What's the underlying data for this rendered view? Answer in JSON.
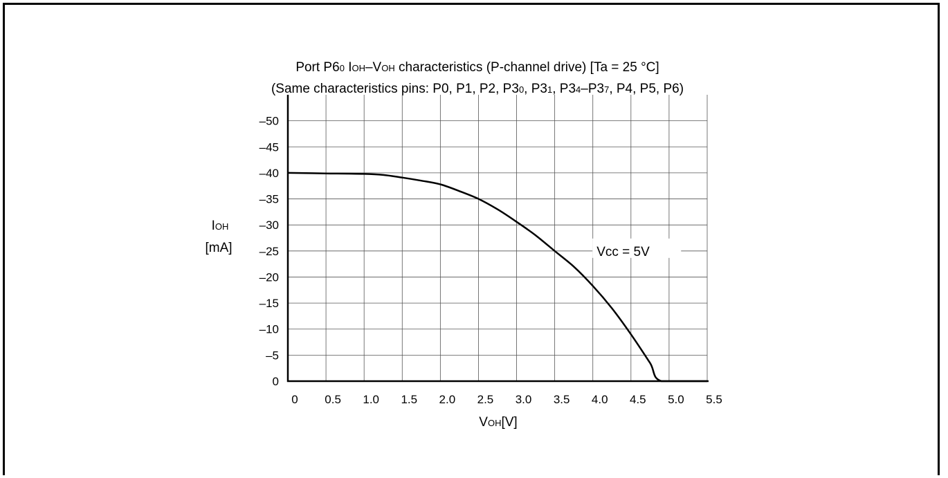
{
  "chart_data": {
    "type": "line",
    "title": "Port P6₀ IOH–VOH characteristics (P-channel drive) [Ta = 25 °C]",
    "subtitle": "(Same characteristics pins: P0, P1, P2, P3₀, P3₁, P3₄–P3₇, P4, P5, P6)",
    "title_parts": [
      {
        "t": "Port P6",
        "sub": false
      },
      {
        "t": "0",
        "sub": true
      },
      {
        "t": " I",
        "sub": false
      },
      {
        "t": "OH",
        "sub": true
      },
      {
        "t": "–V",
        "sub": false
      },
      {
        "t": "OH",
        "sub": true
      },
      {
        "t": " characteristics (P-channel drive) [Ta = 25 °C]",
        "sub": false
      }
    ],
    "subtitle_parts": [
      {
        "t": "(Same characteristics pins: P0, P1, P2, P3",
        "sub": false
      },
      {
        "t": "0",
        "sub": true
      },
      {
        "t": ", P3",
        "sub": false
      },
      {
        "t": "1",
        "sub": true
      },
      {
        "t": ", P3",
        "sub": false
      },
      {
        "t": "4",
        "sub": true
      },
      {
        "t": "–P3",
        "sub": false
      },
      {
        "t": "7",
        "sub": true
      },
      {
        "t": ", P4, P5, P6)",
        "sub": false
      }
    ],
    "xlabel_parts": [
      {
        "t": "V",
        "sub": false
      },
      {
        "t": "OH",
        "sub": true
      },
      {
        "t": "[V]",
        "sub": false
      }
    ],
    "ylabel_line1_parts": [
      {
        "t": "I",
        "sub": false
      },
      {
        "t": "OH",
        "sub": true
      }
    ],
    "ylabel_line2": "[mA]",
    "xlim": [
      0,
      5.5
    ],
    "ylim": [
      0,
      -55
    ],
    "x_ticks": [
      0,
      0.5,
      1.0,
      1.5,
      2.0,
      2.5,
      3.0,
      3.5,
      4.0,
      4.5,
      5.0,
      5.5
    ],
    "x_tick_labels": [
      "0",
      "0.5",
      "1.0",
      "1.5",
      "2.0",
      "2.5",
      "3.0",
      "3.5",
      "4.0",
      "4.5",
      "5.0",
      "5.5"
    ],
    "y_ticks": [
      0,
      -5,
      -10,
      -15,
      -20,
      -25,
      -30,
      -35,
      -40,
      -45,
      -50
    ],
    "y_tick_labels": [
      "0",
      "–5",
      "–10",
      "–15",
      "–20",
      "–25",
      "–30",
      "–35",
      "–40",
      "–45",
      "–50"
    ],
    "grid": true,
    "series": [
      {
        "name": "Vcc = 5V",
        "x": [
          0,
          0.5,
          1.0,
          1.25,
          1.5,
          1.75,
          2.0,
          2.25,
          2.5,
          2.75,
          3.0,
          3.25,
          3.5,
          3.75,
          4.0,
          4.25,
          4.5,
          4.75,
          4.9,
          5.5
        ],
        "y": [
          -40,
          -39.9,
          -39.8,
          -39.6,
          -39.1,
          -38.5,
          -37.8,
          -36.5,
          -35,
          -33,
          -30.6,
          -28,
          -25,
          -22,
          -18.3,
          -14,
          -9,
          -3.5,
          0,
          0
        ]
      }
    ],
    "annotation": {
      "text": "Vcc = 5V",
      "x": 4.05,
      "y": -25
    }
  }
}
